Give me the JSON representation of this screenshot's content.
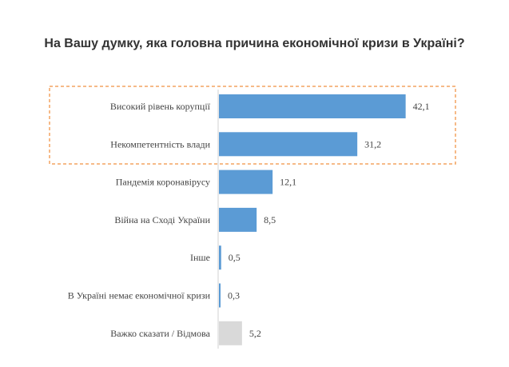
{
  "chart_data": {
    "type": "bar",
    "orientation": "horizontal",
    "title": "На Вашу думку, яка головна причина економічної кризи в Україні?",
    "categories": [
      "Високий рівень корупції",
      "Некомпетентність влади",
      "Пандемія коронавірусу",
      "Війна на Сході України",
      "Інше",
      "В Україні немає економічної кризи",
      "Важко сказати / Відмова"
    ],
    "values": [
      42.1,
      31.2,
      12.1,
      8.5,
      0.5,
      0.3,
      5.2
    ],
    "value_labels": [
      "42,1",
      "31,2",
      "12,1",
      "8,5",
      "0,5",
      "0,3",
      "5,2"
    ],
    "xlim": [
      0,
      50
    ],
    "grid": false,
    "highlighted_categories": [
      "Високий рівень корупції",
      "Некомпетентність влади"
    ],
    "colors": {
      "bar": "#5b9bd5",
      "neutral_bar": "#d9d9d9",
      "highlight_border": "#f4a460",
      "title": "#333333",
      "label": "#444444"
    }
  }
}
